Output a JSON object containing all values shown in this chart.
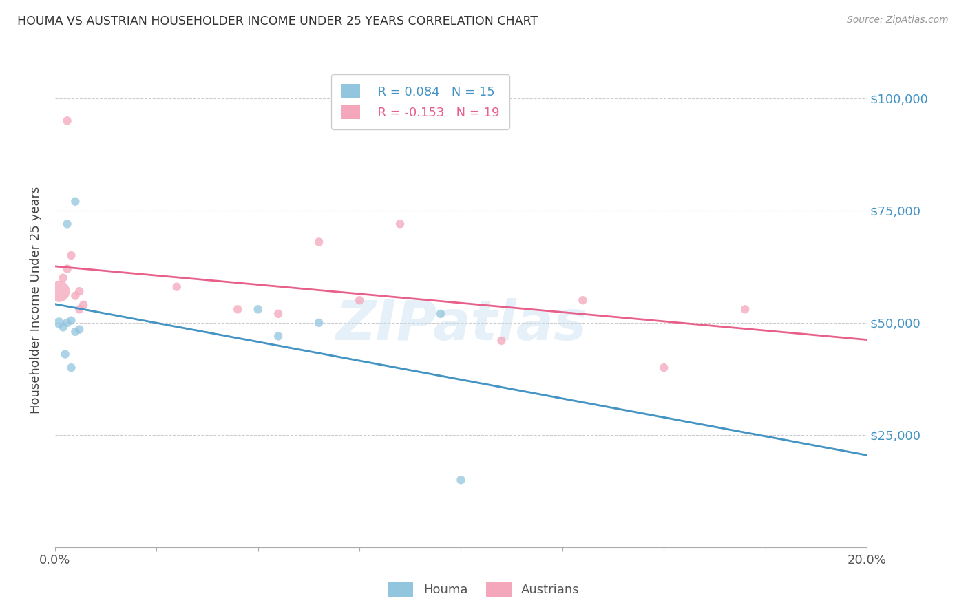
{
  "title": "HOUMA VS AUSTRIAN HOUSEHOLDER INCOME UNDER 25 YEARS CORRELATION CHART",
  "source": "Source: ZipAtlas.com",
  "ylabel": "Householder Income Under 25 years",
  "xlim": [
    0.0,
    0.2
  ],
  "ylim": [
    0,
    110000
  ],
  "yticks": [
    0,
    25000,
    50000,
    75000,
    100000
  ],
  "ytick_labels": [
    "",
    "$25,000",
    "$50,000",
    "$75,000",
    "$100,000"
  ],
  "xticks": [
    0.0,
    0.025,
    0.05,
    0.075,
    0.1,
    0.125,
    0.15,
    0.175,
    0.2
  ],
  "xtick_labels": [
    "0.0%",
    "",
    "",
    "",
    "",
    "",
    "",
    "",
    "20.0%"
  ],
  "houma_color": "#92c5de",
  "austrian_color": "#f4a6bb",
  "trend_houma_solid_color": "#4393c3",
  "trend_houma_dashed_color": "#aacde8",
  "trend_austrian_color": "#e8608a",
  "legend_R_houma": "R = 0.084",
  "legend_N_houma": "N = 15",
  "legend_R_austrian": "R = -0.153",
  "legend_N_austrian": "N = 19",
  "watermark": "ZIPatlas",
  "houma_x": [
    0.001,
    0.002,
    0.0025,
    0.003,
    0.003,
    0.004,
    0.004,
    0.005,
    0.006,
    0.05,
    0.055,
    0.065,
    0.095,
    0.1,
    0.005
  ],
  "houma_y": [
    50000,
    49000,
    43000,
    72000,
    50000,
    50500,
    40000,
    77000,
    48500,
    53000,
    47000,
    50000,
    52000,
    15000,
    48000
  ],
  "houma_size": [
    120,
    80,
    80,
    80,
    80,
    80,
    80,
    80,
    80,
    80,
    80,
    80,
    80,
    80,
    80
  ],
  "austrian_x": [
    0.001,
    0.002,
    0.003,
    0.003,
    0.004,
    0.005,
    0.006,
    0.006,
    0.007,
    0.03,
    0.045,
    0.055,
    0.065,
    0.075,
    0.085,
    0.11,
    0.13,
    0.15,
    0.17
  ],
  "austrian_y": [
    57000,
    60000,
    95000,
    62000,
    65000,
    56000,
    57000,
    53000,
    54000,
    58000,
    53000,
    52000,
    68000,
    55000,
    72000,
    46000,
    55000,
    40000,
    53000
  ],
  "austrian_size": [
    500,
    80,
    80,
    80,
    80,
    80,
    80,
    80,
    80,
    80,
    80,
    80,
    80,
    80,
    80,
    80,
    80,
    80,
    80
  ],
  "houma_trend_x_start": 0.0,
  "houma_trend_x_end": 0.2,
  "austrian_trend_x_start": 0.0,
  "austrian_trend_x_end": 0.2
}
